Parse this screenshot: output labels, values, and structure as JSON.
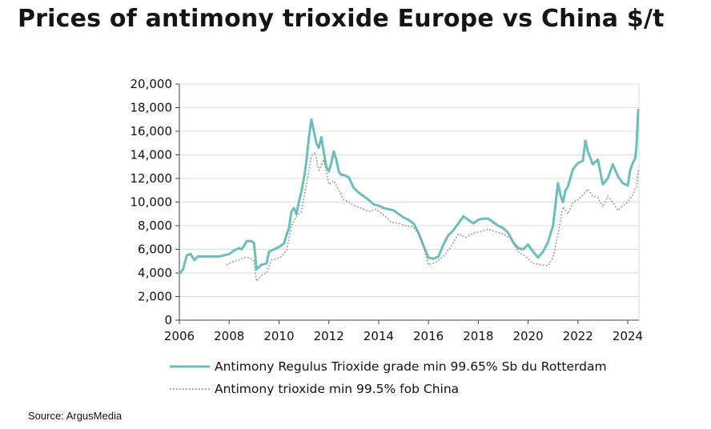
{
  "headline": "Prices of antimony trioxide Europe vs China $/t",
  "source": "Source: ArgusMedia",
  "chart_data": {
    "type": "line",
    "title": "Prices of antimony trioxide Europe vs China $/t",
    "xlabel": "",
    "ylabel": "",
    "xlim": [
      2006,
      2024.45
    ],
    "ylim": [
      0,
      20000
    ],
    "grid": "horizontal",
    "legend_position": "bottom",
    "x_ticks": [
      2006,
      2008,
      2010,
      2012,
      2014,
      2016,
      2018,
      2020,
      2022,
      2024
    ],
    "x_tick_labels": [
      "2006",
      "2008",
      "2010",
      "2012",
      "2014",
      "2016",
      "2018",
      "2020",
      "2022",
      "2024"
    ],
    "y_ticks": [
      0,
      2000,
      4000,
      6000,
      8000,
      10000,
      12000,
      14000,
      16000,
      18000,
      20000
    ],
    "y_tick_labels": [
      "0",
      "2,000",
      "4,000",
      "6,000",
      "8,000",
      "10,000",
      "12,000",
      "14,000",
      "16,000",
      "18,000",
      "20,000"
    ],
    "series": [
      {
        "name": "Antimony Regulus Trioxide grade min 99.65% Sb du Rotterdam",
        "color": "#6dbdbd",
        "style": "solid",
        "x": [
          2006.0,
          2006.15,
          2006.3,
          2006.45,
          2006.6,
          2006.75,
          2007.0,
          2007.3,
          2007.6,
          2007.8,
          2008.0,
          2008.2,
          2008.4,
          2008.5,
          2008.6,
          2008.7,
          2008.8,
          2008.9,
          2009.0,
          2009.1,
          2009.3,
          2009.5,
          2009.6,
          2009.8,
          2010.0,
          2010.2,
          2010.3,
          2010.4,
          2010.5,
          2010.6,
          2010.7,
          2010.8,
          2010.9,
          2011.0,
          2011.1,
          2011.2,
          2011.3,
          2011.4,
          2011.5,
          2011.6,
          2011.7,
          2011.8,
          2011.9,
          2012.0,
          2012.1,
          2012.2,
          2012.3,
          2012.4,
          2012.5,
          2012.6,
          2012.8,
          2013.0,
          2013.2,
          2013.4,
          2013.6,
          2013.8,
          2014.0,
          2014.2,
          2014.4,
          2014.6,
          2014.8,
          2015.0,
          2015.2,
          2015.4,
          2015.5,
          2015.6,
          2015.8,
          2016.0,
          2016.2,
          2016.4,
          2016.6,
          2016.8,
          2017.0,
          2017.2,
          2017.4,
          2017.6,
          2017.8,
          2018.0,
          2018.2,
          2018.4,
          2018.6,
          2018.8,
          2019.0,
          2019.2,
          2019.4,
          2019.6,
          2019.8,
          2020.0,
          2020.2,
          2020.4,
          2020.6,
          2020.8,
          2021.0,
          2021.1,
          2021.2,
          2021.3,
          2021.4,
          2021.5,
          2021.6,
          2021.8,
          2022.0,
          2022.2,
          2022.3,
          2022.4,
          2022.6,
          2022.8,
          2023.0,
          2023.2,
          2023.4,
          2023.6,
          2023.8,
          2024.0,
          2024.1,
          2024.2,
          2024.3,
          2024.35,
          2024.42
        ],
        "y": [
          3900,
          4300,
          5500,
          5600,
          5100,
          5400,
          5400,
          5400,
          5400,
          5500,
          5600,
          5900,
          6100,
          6000,
          6300,
          6700,
          6700,
          6700,
          6500,
          4300,
          4700,
          4800,
          5800,
          6000,
          6200,
          6500,
          7200,
          7800,
          9200,
          9500,
          9000,
          10000,
          10900,
          12000,
          13500,
          15500,
          17000,
          16000,
          15000,
          14600,
          15500,
          14200,
          13000,
          12600,
          13300,
          14300,
          13600,
          12600,
          12300,
          12300,
          12100,
          11200,
          10800,
          10500,
          10200,
          9800,
          9700,
          9500,
          9400,
          9300,
          9000,
          8700,
          8500,
          8200,
          7800,
          7400,
          6300,
          5300,
          5200,
          5400,
          6400,
          7200,
          7600,
          8200,
          8800,
          8500,
          8200,
          8500,
          8600,
          8600,
          8300,
          8000,
          7800,
          7400,
          6600,
          6100,
          6000,
          6400,
          5800,
          5300,
          5800,
          6600,
          8000,
          9800,
          11600,
          10600,
          10000,
          11000,
          11300,
          12800,
          13300,
          13500,
          15200,
          14300,
          13200,
          13600,
          11500,
          12000,
          13200,
          12200,
          11600,
          11400,
          12700,
          13300,
          13700,
          14700,
          17800
        ]
      },
      {
        "name": "Antimony trioxide min 99.5% fob China",
        "color": "#8c8c8c",
        "style": "dotted",
        "x": [
          2007.9,
          2008.0,
          2008.2,
          2008.4,
          2008.6,
          2008.8,
          2009.0,
          2009.1,
          2009.3,
          2009.5,
          2009.7,
          2009.9,
          2010.1,
          2010.3,
          2010.5,
          2010.7,
          2010.9,
          2011.1,
          2011.3,
          2011.45,
          2011.6,
          2011.8,
          2012.0,
          2012.2,
          2012.4,
          2012.6,
          2012.8,
          2013.0,
          2013.3,
          2013.6,
          2013.9,
          2014.2,
          2014.5,
          2014.8,
          2015.1,
          2015.4,
          2015.7,
          2016.0,
          2016.3,
          2016.6,
          2016.9,
          2017.2,
          2017.5,
          2017.8,
          2018.1,
          2018.4,
          2018.7,
          2019.0,
          2019.3,
          2019.6,
          2019.9,
          2020.2,
          2020.5,
          2020.8,
          2021.0,
          2021.2,
          2021.4,
          2021.6,
          2021.8,
          2022.0,
          2022.2,
          2022.4,
          2022.6,
          2022.8,
          2023.0,
          2023.2,
          2023.4,
          2023.6,
          2023.8,
          2024.0,
          2024.2,
          2024.3,
          2024.35,
          2024.42
        ],
        "y": [
          4700,
          4800,
          5000,
          5100,
          5300,
          5300,
          5000,
          3300,
          3800,
          4000,
          5100,
          5200,
          5400,
          5900,
          8000,
          8800,
          9200,
          11500,
          13900,
          14200,
          12700,
          13600,
          11500,
          11800,
          11000,
          10200,
          10000,
          9700,
          9500,
          9200,
          9400,
          8900,
          8300,
          8200,
          8000,
          7900,
          7000,
          4700,
          4900,
          5400,
          6200,
          7300,
          7000,
          7400,
          7500,
          7700,
          7500,
          7300,
          6900,
          5800,
          5400,
          4800,
          4700,
          4600,
          5300,
          7300,
          9600,
          9000,
          10000,
          10200,
          10600,
          11100,
          10500,
          10400,
          9600,
          10500,
          10000,
          9300,
          9700,
          10000,
          10600,
          11100,
          11200,
          12700
        ]
      }
    ]
  }
}
